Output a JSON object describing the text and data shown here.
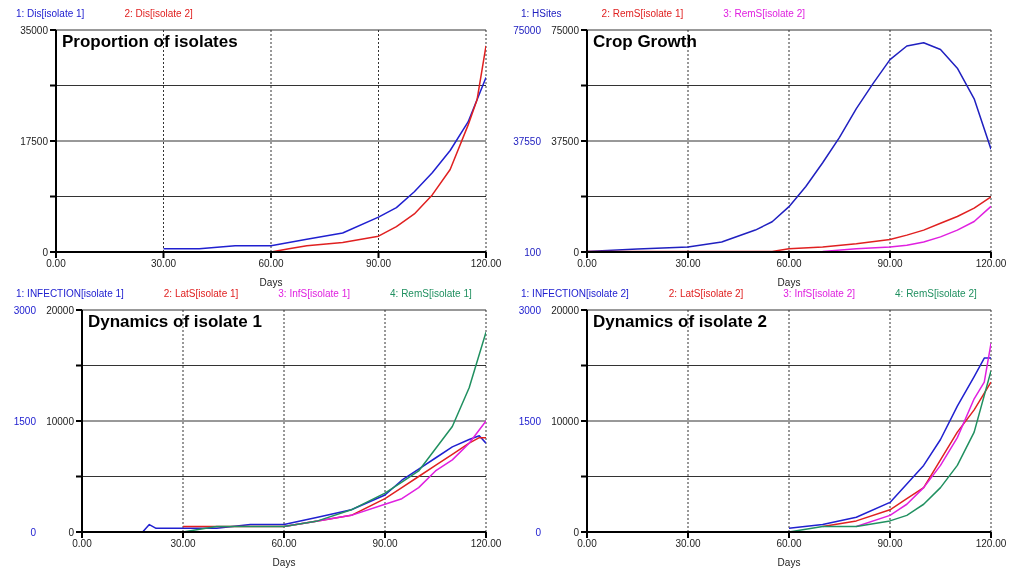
{
  "chart_data": [
    {
      "type": "line",
      "title": "Proportion of isolates",
      "xlabel": "Days",
      "legend": "top",
      "grid": true,
      "xlim": [
        0,
        120
      ],
      "xticks": [
        {
          "value": 0,
          "label": "0.00"
        },
        {
          "value": 30,
          "label": "30.00"
        },
        {
          "value": 60,
          "label": "60.00"
        },
        {
          "value": 90,
          "label": "90.00"
        },
        {
          "value": 120,
          "label": "120.00"
        }
      ],
      "ylim": [
        0,
        35000
      ],
      "yticks": [
        0,
        {
          "value": 8750,
          "label": null
        },
        17500,
        {
          "value": 26250,
          "label": null
        },
        35000
      ],
      "series": [
        {
          "name": "1: Dis[isolate 1]",
          "color": "#2020d0",
          "x": [
            30,
            40,
            50,
            60,
            70,
            80,
            90,
            95,
            100,
            105,
            110,
            115,
            120
          ],
          "values": [
            500,
            500,
            1000,
            1000,
            2000,
            3000,
            5500,
            7000,
            9500,
            12500,
            16000,
            20500,
            27500
          ]
        },
        {
          "name": "2: Dis[isolate 2]",
          "color": "#e02020",
          "x": [
            0,
            60,
            65,
            70,
            80,
            90,
            95,
            100,
            105,
            110,
            115,
            117.5,
            120
          ],
          "values": [
            0,
            0,
            500,
            1000,
            1500,
            2500,
            4000,
            6000,
            9000,
            13000,
            20000,
            24000,
            32500
          ]
        }
      ]
    },
    {
      "type": "line",
      "title": "Crop Growth",
      "xlabel": "Days",
      "legend": "top",
      "grid": true,
      "xlim": [
        0,
        120
      ],
      "xticks": [
        {
          "value": 0,
          "label": "0.00"
        },
        {
          "value": 30,
          "label": "30.00"
        },
        {
          "value": 60,
          "label": "60.00"
        },
        {
          "value": 90,
          "label": "90.00"
        },
        {
          "value": 120,
          "label": "120.00"
        }
      ],
      "ylim": [
        0,
        75000
      ],
      "yticks": [
        0,
        {
          "value": 18750,
          "label": null
        },
        37500,
        {
          "value": 56250,
          "label": null
        },
        75000
      ],
      "y2lim": [
        100,
        75000
      ],
      "y2ticks": [
        100,
        37550,
        75000
      ],
      "series": [
        {
          "name": "1: HSites",
          "color": "#2020c0",
          "axis": "y2",
          "x": [
            0,
            15,
            30,
            40,
            50,
            55,
            60,
            65,
            70,
            75,
            80,
            85,
            90,
            95,
            100,
            105,
            110,
            115,
            120
          ],
          "values": [
            300,
            1100,
            1800,
            3500,
            7500,
            10300,
            15400,
            22200,
            30200,
            38800,
            48500,
            57000,
            65000,
            69600,
            70700,
            68400,
            62100,
            51800,
            34800
          ]
        },
        {
          "name": "2: RemS[isolate 1]",
          "color": "#e02020",
          "x": [
            0,
            30,
            55,
            60,
            70,
            80,
            90,
            95,
            100,
            105,
            110,
            115,
            120
          ],
          "values": [
            200,
            200,
            200,
            1100,
            1700,
            2800,
            4200,
            5700,
            7400,
            9700,
            12000,
            14800,
            18600
          ]
        },
        {
          "name": "3: RemS[isolate 2]",
          "color": "#e020e0",
          "x": [
            70,
            80,
            90,
            95,
            100,
            105,
            110,
            115,
            120
          ],
          "values": [
            200,
            1100,
            1700,
            2300,
            3400,
            5100,
            7400,
            10300,
            15400
          ]
        }
      ]
    },
    {
      "type": "line",
      "title": "Dynamics of isolate 1",
      "xlabel": "Days",
      "legend": "top",
      "grid": true,
      "xlim": [
        0,
        120
      ],
      "xticks": [
        {
          "value": 0,
          "label": "0.00"
        },
        {
          "value": 30,
          "label": "30.00"
        },
        {
          "value": 60,
          "label": "60.00"
        },
        {
          "value": 90,
          "label": "90.00"
        },
        {
          "value": 120,
          "label": "120.00"
        }
      ],
      "ylim": [
        0,
        20000
      ],
      "yticks": [
        0,
        {
          "value": 5000,
          "label": null
        },
        10000,
        {
          "value": 15000,
          "label": null
        },
        20000
      ],
      "y2lim": [
        0,
        3000
      ],
      "y2ticks": [
        0,
        1500,
        3000
      ],
      "series": [
        {
          "name": "1: INFECTION[isolate 1]",
          "color": "#2020d0",
          "axis": "y2",
          "x": [
            18,
            20,
            22,
            30,
            40,
            50,
            60,
            70,
            80,
            90,
            95,
            100,
            105,
            110,
            115,
            118,
            120
          ],
          "values": [
            0,
            100,
            50,
            50,
            50,
            100,
            100,
            200,
            300,
            500,
            700,
            850,
            1000,
            1150,
            1250,
            1300,
            1200
          ]
        },
        {
          "name": "2: LatS[isolate 1]",
          "color": "#e02020",
          "x": [
            30,
            60,
            70,
            80,
            90,
            95,
            100,
            105,
            110,
            115,
            118,
            120
          ],
          "values": [
            500,
            500,
            1000,
            1500,
            3000,
            4000,
            5000,
            6000,
            7000,
            8000,
            8500,
            8500
          ]
        },
        {
          "name": "3: InfS[isolate 1]",
          "color": "#e020e0",
          "x": [
            60,
            70,
            80,
            90,
            95,
            100,
            105,
            110,
            115,
            120
          ],
          "values": [
            500,
            1000,
            1500,
            2500,
            3000,
            4000,
            5500,
            6500,
            8000,
            10000
          ]
        },
        {
          "name": "4: RemS[isolate 1]",
          "color": "#209060",
          "x": [
            0,
            20,
            30,
            40,
            50,
            60,
            70,
            80,
            90,
            95,
            100,
            105,
            110,
            115,
            120
          ],
          "values": [
            0,
            0,
            0,
            500,
            500,
            500,
            1000,
            2000,
            3500,
            4500,
            5500,
            7500,
            9500,
            13000,
            18000
          ]
        }
      ]
    },
    {
      "type": "line",
      "title": "Dynamics of isolate 2",
      "xlabel": "Days",
      "legend": "top",
      "grid": true,
      "xlim": [
        0,
        120
      ],
      "xticks": [
        {
          "value": 0,
          "label": "0.00"
        },
        {
          "value": 30,
          "label": "30.00"
        },
        {
          "value": 60,
          "label": "60.00"
        },
        {
          "value": 90,
          "label": "90.00"
        },
        {
          "value": 120,
          "label": "120.00"
        }
      ],
      "ylim": [
        0,
        20000
      ],
      "yticks": [
        0,
        {
          "value": 5000,
          "label": null
        },
        10000,
        {
          "value": 15000,
          "label": null
        },
        20000
      ],
      "y2lim": [
        0,
        3000
      ],
      "y2ticks": [
        0,
        1500,
        3000
      ],
      "series": [
        {
          "name": "1: INFECTION[isolate 2]",
          "color": "#2020d0",
          "axis": "y2",
          "x": [
            60,
            70,
            80,
            90,
            95,
            100,
            105,
            110,
            115,
            118,
            120
          ],
          "values": [
            50,
            100,
            200,
            400,
            650,
            900,
            1250,
            1700,
            2100,
            2350,
            2350
          ]
        },
        {
          "name": "2: LatS[isolate 2]",
          "color": "#e02020",
          "x": [
            70,
            80,
            90,
            95,
            100,
            105,
            110,
            115,
            120
          ],
          "values": [
            500,
            1000,
            2000,
            3000,
            4000,
            6500,
            9000,
            11000,
            13500
          ]
        },
        {
          "name": "3: InfS[isolate 2]",
          "color": "#e020e0",
          "x": [
            80,
            90,
            95,
            100,
            105,
            110,
            115,
            118,
            120
          ],
          "values": [
            500,
            1500,
            2500,
            4000,
            6000,
            8500,
            12000,
            13500,
            17000
          ]
        },
        {
          "name": "4: RemS[isolate 2]",
          "color": "#209060",
          "x": [
            55,
            60,
            70,
            80,
            90,
            95,
            100,
            105,
            110,
            115,
            120
          ],
          "values": [
            0,
            0,
            500,
            500,
            1000,
            1500,
            2500,
            4000,
            6000,
            9000,
            14500
          ]
        }
      ]
    }
  ]
}
